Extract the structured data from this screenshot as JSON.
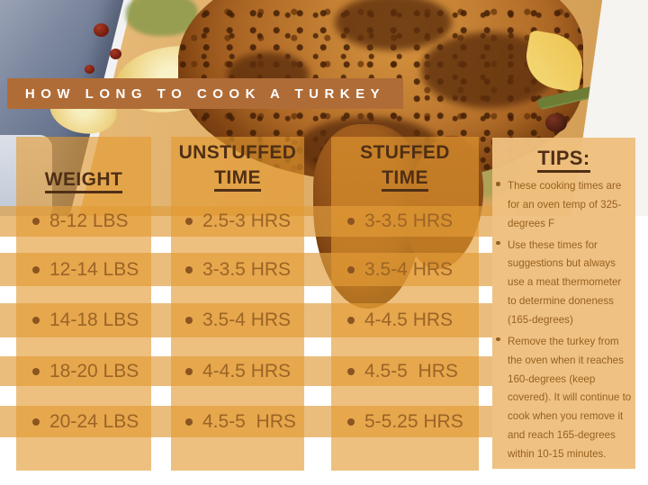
{
  "banner": {
    "title": "HOW LONG TO COOK A TURKEY"
  },
  "table": {
    "columns": [
      {
        "id": "weight",
        "header_line1": "WEIGHT",
        "header_line2": "",
        "rows": [
          "8-12 LBS",
          "12-14 LBS",
          "14-18 LBS",
          "18-20 LBS",
          "20-24 LBS"
        ]
      },
      {
        "id": "unstuffed",
        "header_line1": "UNSTUFFED",
        "header_line2": "TIME",
        "rows": [
          "2.5-3 HRS",
          "3-3.5 HRS",
          "3.5-4 HRS",
          "4-4.5 HRS",
          "4.5-5  HRS"
        ]
      },
      {
        "id": "stuffed",
        "header_line1": "STUFFED",
        "header_line2": "TIME",
        "rows": [
          "3-3.5 HRS",
          "3.5-4 HRS",
          "4-4.5 HRS",
          "4.5-5  HRS",
          "5-5.25 HRS"
        ]
      }
    ]
  },
  "tips": {
    "header": "TIPS:",
    "items": [
      "These cooking times are for an oven temp of 325-degrees F",
      "Use these times for suggestions but always use a meat thermometer to determine doneness (165-degrees)",
      "Remove the turkey from the oven when it reaches 160-degrees (keep covered). It will continue to cook when you remove it and reach 165-degrees within 10-15 minutes."
    ]
  },
  "colors": {
    "banner_bg": "#b06c37",
    "panel_tan": "#eec07f",
    "stripe_tan": "#e5aa5e",
    "header_text": "#4f2f15",
    "row_text": "#9c6426",
    "tips_text": "#97611e",
    "background": "#ffffff"
  }
}
